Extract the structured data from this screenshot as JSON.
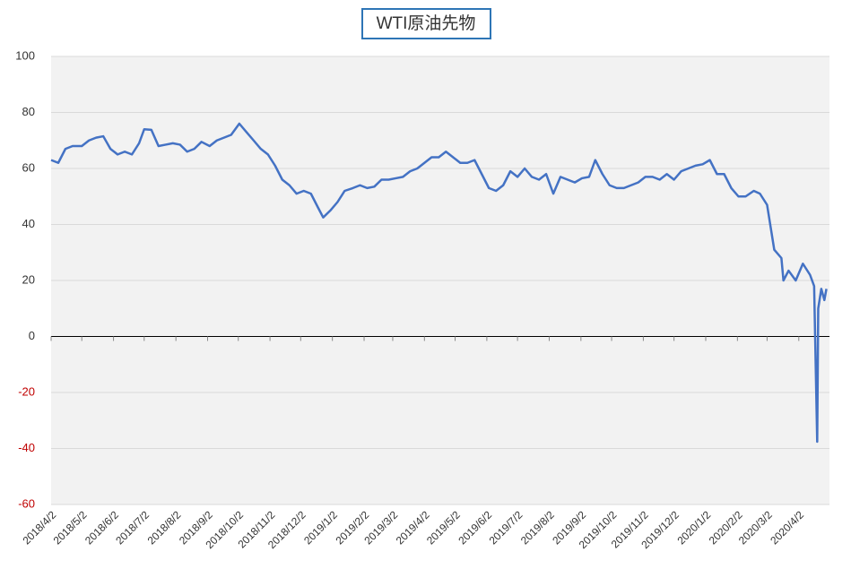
{
  "chart_data": {
    "type": "line",
    "title": "WTI原油先物",
    "x": [
      "2018/4/2",
      "2018/4/9",
      "2018/4/16",
      "2018/4/23",
      "2018/5/2",
      "2018/5/9",
      "2018/5/16",
      "2018/5/23",
      "2018/5/30",
      "2018/6/6",
      "2018/6/13",
      "2018/6/20",
      "2018/6/27",
      "2018/7/2",
      "2018/7/9",
      "2018/7/16",
      "2018/7/23",
      "2018/7/30",
      "2018/8/6",
      "2018/8/13",
      "2018/8/20",
      "2018/8/27",
      "2018/9/4",
      "2018/9/11",
      "2018/9/18",
      "2018/9/25",
      "2018/10/3",
      "2018/10/10",
      "2018/10/17",
      "2018/10/24",
      "2018/10/31",
      "2018/11/7",
      "2018/11/14",
      "2018/11/21",
      "2018/11/28",
      "2018/12/5",
      "2018/12/12",
      "2018/12/19",
      "2018/12/24",
      "2018/12/31",
      "2019/1/7",
      "2019/1/14",
      "2019/1/22",
      "2019/1/29",
      "2019/2/5",
      "2019/2/12",
      "2019/2/19",
      "2019/2/26",
      "2019/3/5",
      "2019/3/12",
      "2019/3/19",
      "2019/3/26",
      "2019/4/2",
      "2019/4/9",
      "2019/4/16",
      "2019/4/23",
      "2019/4/30",
      "2019/5/7",
      "2019/5/14",
      "2019/5/21",
      "2019/5/28",
      "2019/6/4",
      "2019/6/11",
      "2019/6/18",
      "2019/6/25",
      "2019/7/2",
      "2019/7/9",
      "2019/7/16",
      "2019/7/23",
      "2019/7/30",
      "2019/8/6",
      "2019/8/13",
      "2019/8/20",
      "2019/8/27",
      "2019/9/3",
      "2019/9/10",
      "2019/9/16",
      "2019/9/23",
      "2019/9/30",
      "2019/10/7",
      "2019/10/14",
      "2019/10/21",
      "2019/10/28",
      "2019/11/4",
      "2019/11/11",
      "2019/11/18",
      "2019/11/25",
      "2019/12/2",
      "2019/12/9",
      "2019/12/16",
      "2019/12/23",
      "2019/12/30",
      "2020/1/6",
      "2020/1/13",
      "2020/1/20",
      "2020/1/27",
      "2020/2/3",
      "2020/2/10",
      "2020/2/18",
      "2020/2/24",
      "2020/3/2",
      "2020/3/9",
      "2020/3/16",
      "2020/3/18",
      "2020/3/23",
      "2020/3/30",
      "2020/4/6",
      "2020/4/13",
      "2020/4/17",
      "2020/4/20",
      "2020/4/21",
      "2020/4/24",
      "2020/4/27",
      "2020/4/29"
    ],
    "series": [
      {
        "color": "#4472c4",
        "values": [
          63,
          62,
          67,
          68,
          68,
          70,
          71,
          71.5,
          67,
          65,
          66,
          65,
          69,
          74,
          73.8,
          68,
          68.5,
          69,
          68.5,
          66,
          67,
          69.5,
          68,
          70,
          71,
          72,
          76,
          73,
          70,
          67,
          65,
          61,
          56,
          54,
          51,
          52,
          51,
          46,
          42.5,
          45,
          48,
          52,
          53,
          54,
          53,
          53.5,
          56,
          56,
          56.5,
          57,
          59,
          60,
          62,
          64,
          64,
          66,
          64,
          62,
          62,
          63,
          58,
          53,
          52,
          54,
          59,
          57,
          60,
          57,
          56,
          58,
          51,
          57,
          56,
          55,
          56.5,
          57,
          63,
          58,
          54,
          53,
          53,
          54,
          55,
          57,
          57,
          56,
          58,
          56,
          59,
          60,
          61,
          61.5,
          63,
          58,
          58,
          53,
          50,
          50,
          52,
          51,
          47,
          31,
          28,
          20,
          23.5,
          20,
          26,
          22,
          18,
          -37.6,
          10,
          17,
          13,
          17
        ]
      }
    ],
    "xlim": [
      "2018/4/2",
      "2020/5/2"
    ],
    "xticks": [
      "2018/4/2",
      "2018/5/2",
      "2018/6/2",
      "2018/7/2",
      "2018/8/2",
      "2018/9/2",
      "2018/10/2",
      "2018/11/2",
      "2018/12/2",
      "2019/1/2",
      "2019/2/2",
      "2019/3/2",
      "2019/4/2",
      "2019/5/2",
      "2019/6/2",
      "2019/7/2",
      "2019/8/2",
      "2019/9/2",
      "2019/10/2",
      "2019/11/2",
      "2019/12/2",
      "2020/1/2",
      "2020/2/2",
      "2020/3/2",
      "2020/4/2"
    ],
    "ylim": [
      -60,
      100
    ],
    "yticks": [
      -60,
      -40,
      -20,
      0,
      20,
      40,
      60,
      80,
      100
    ],
    "grid": true,
    "negative_tick_color": "#c00000"
  }
}
